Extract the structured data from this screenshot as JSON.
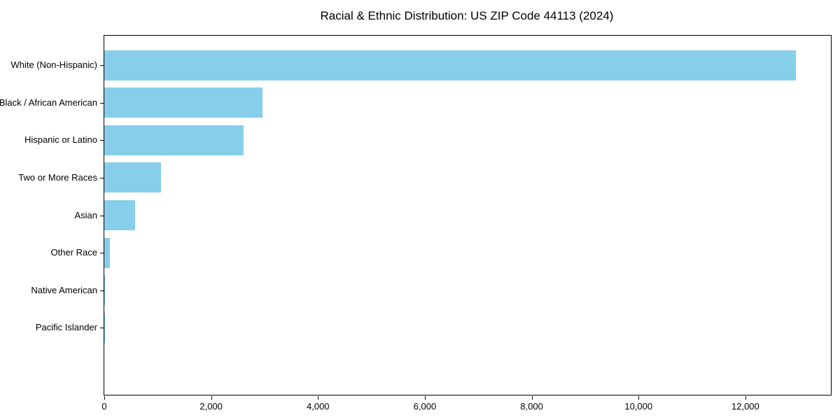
{
  "chart_data": {
    "type": "bar",
    "orientation": "horizontal",
    "title": "Racial & Ethnic Distribution: US ZIP Code 44113 (2024)",
    "xlabel": "",
    "ylabel": "",
    "categories": [
      "White (Non-Hispanic)",
      "Black / African American",
      "Hispanic or Latino",
      "Two or More Races",
      "Asian",
      "Other Race",
      "Native American",
      "Pacific Islander"
    ],
    "values": [
      12950,
      2965,
      2610,
      1055,
      570,
      100,
      15,
      4
    ],
    "xlim": [
      0,
      13600
    ],
    "x_ticks": [
      0,
      2000,
      4000,
      6000,
      8000,
      10000,
      12000
    ],
    "x_tick_labels": [
      "0",
      "2,000",
      "4,000",
      "6,000",
      "8,000",
      "10,000",
      "12,000"
    ],
    "bar_color": "#87CEEB",
    "axis_color": "#000000",
    "text_color": "#000000",
    "grid": false,
    "legend": null
  }
}
